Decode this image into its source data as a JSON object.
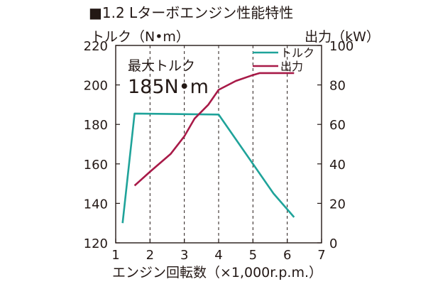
{
  "chart_data": {
    "type": "line",
    "title": "■1.2 Lターボエンジン性能特性",
    "xlabel": "エンジン回転数（×1,000r.p.m.）",
    "ylabel_left": "トルク（N•m）",
    "ylabel_right": "出力（kW）",
    "xlim": [
      1,
      7
    ],
    "ylim_left": [
      120,
      220
    ],
    "ylim_right": [
      0,
      100
    ],
    "x_ticks": [
      "1",
      "2",
      "3",
      "4",
      "5",
      "6",
      "7"
    ],
    "y_ticks_left": [
      "120",
      "140",
      "160",
      "180",
      "200",
      "220"
    ],
    "y_ticks_right": [
      "0",
      "20",
      "40",
      "60",
      "80",
      "100"
    ],
    "vertical_dashed_gridlines_at": [
      2,
      3,
      4,
      5,
      6
    ],
    "annotation": {
      "label": "最大トルク",
      "value": "185N•m"
    },
    "legend_position": "top-right",
    "series": [
      {
        "name": "トルク",
        "axis": "left",
        "color": "#1fa39a",
        "x": [
          1.2,
          1.55,
          4.0,
          5.0,
          5.6,
          6.2
        ],
        "y": [
          130,
          185.5,
          185,
          160,
          145,
          133
        ]
      },
      {
        "name": "出力",
        "axis": "right",
        "color": "#a81a48",
        "x": [
          1.55,
          2.0,
          2.6,
          3.0,
          3.3,
          3.7,
          4.0,
          4.5,
          5.0,
          5.2,
          6.2
        ],
        "y": [
          29,
          36,
          45,
          54,
          63,
          70,
          77.5,
          82,
          85,
          86,
          86
        ]
      }
    ]
  }
}
